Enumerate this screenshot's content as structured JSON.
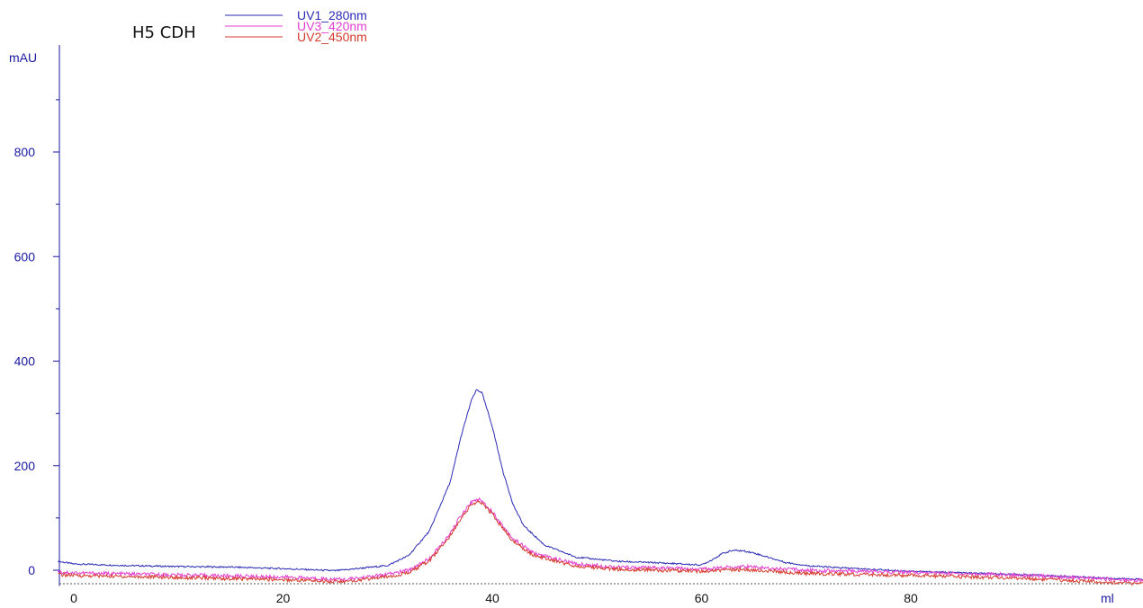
{
  "chart_data": {
    "type": "line",
    "title": "H5 CDH",
    "xlabel": "ml",
    "ylabel": "mAU",
    "xlim": [
      -1.5,
      103
    ],
    "ylim": [
      -30,
      1000
    ],
    "x_ticks": [
      0,
      20,
      40,
      60,
      80
    ],
    "y_ticks": [
      0,
      200,
      400,
      600,
      800
    ],
    "grid": false,
    "legend_position": "top-left",
    "colors": {
      "axis": "#1a1aa0",
      "label": "#1a1aa0",
      "baseline": "#555555"
    },
    "series": [
      {
        "name": "UV1_280nm",
        "color": "#2b2bb5",
        "x": [
          -1.5,
          0,
          5,
          10,
          15,
          20,
          25,
          30,
          32,
          34,
          36,
          37,
          38,
          38.5,
          39,
          40,
          41,
          42,
          43,
          45,
          48,
          52,
          56,
          60,
          61,
          62,
          63,
          64,
          65,
          66,
          67,
          68,
          70,
          72,
          75,
          80,
          85,
          90,
          95,
          100,
          103
        ],
        "y": [
          17,
          12,
          9,
          7,
          6,
          3,
          -1,
          9,
          28,
          75,
          170,
          255,
          325,
          345,
          340,
          275,
          190,
          125,
          85,
          48,
          25,
          17,
          14,
          10,
          20,
          32,
          38,
          37,
          33,
          27,
          21,
          15,
          9,
          6,
          3,
          -2,
          -5,
          -8,
          -12,
          -16,
          -18
        ]
      },
      {
        "name": "UV3_420nm",
        "color": "#e23fd0",
        "x": [
          -1.5,
          0,
          10,
          20,
          26,
          30,
          32,
          34,
          36,
          37,
          38,
          38.5,
          39,
          40,
          41,
          42,
          44,
          48,
          52,
          56,
          60,
          62,
          64,
          66,
          70,
          80,
          90,
          100,
          103
        ],
        "y": [
          -3,
          -5,
          -9,
          -13,
          -18,
          -8,
          0,
          22,
          70,
          105,
          130,
          136,
          133,
          112,
          85,
          60,
          32,
          12,
          6,
          4,
          2,
          5,
          7,
          5,
          0,
          -4,
          -9,
          -18,
          -20
        ]
      },
      {
        "name": "UV2_450nm",
        "color": "#d43b2e",
        "x": [
          -1.5,
          0,
          10,
          20,
          26,
          30,
          32,
          34,
          36,
          37,
          38,
          38.5,
          39,
          40,
          41,
          42,
          44,
          48,
          52,
          56,
          60,
          62,
          64,
          66,
          70,
          80,
          90,
          100,
          103
        ],
        "y": [
          -8,
          -10,
          -14,
          -18,
          -22,
          -12,
          -5,
          18,
          66,
          100,
          125,
          130,
          128,
          108,
          80,
          55,
          28,
          8,
          2,
          0,
          -2,
          0,
          1,
          -1,
          -6,
          -10,
          -15,
          -24,
          -27
        ]
      }
    ]
  }
}
